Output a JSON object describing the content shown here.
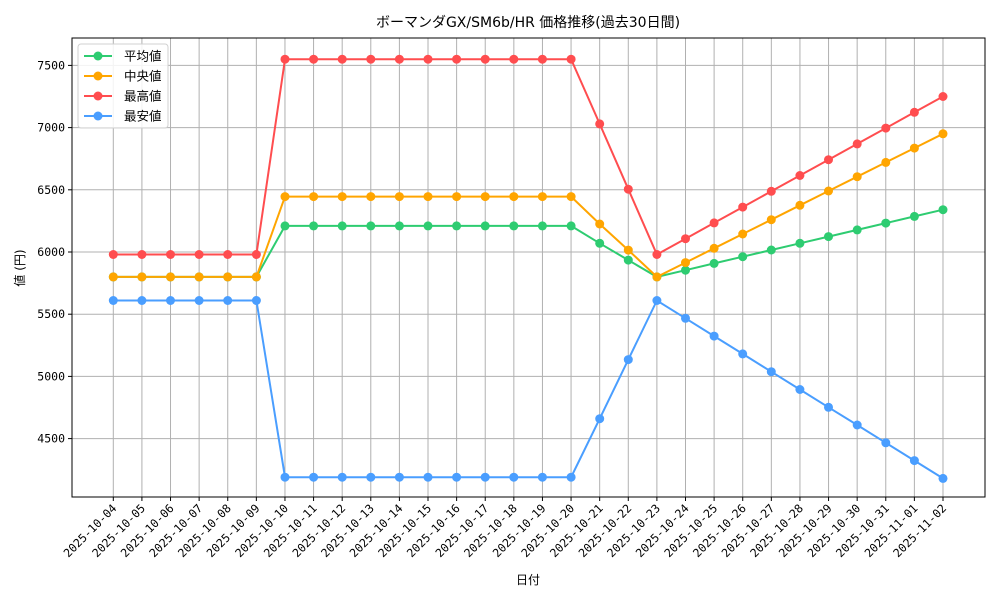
{
  "chart_data": {
    "type": "line",
    "title": "ボーマンダGX/SM6b/HR 価格推移(過去30日間)",
    "xlabel": "日付",
    "ylabel": "値 (円)",
    "ylim": [
      4100,
      7700
    ],
    "yticks": [
      4500,
      5000,
      5500,
      6000,
      6500,
      7000,
      7500
    ],
    "grid": true,
    "legend_position": "upper left",
    "x": [
      "2025-10-04",
      "2025-10-05",
      "2025-10-06",
      "2025-10-07",
      "2025-10-08",
      "2025-10-09",
      "2025-10-10",
      "2025-10-11",
      "2025-10-12",
      "2025-10-13",
      "2025-10-14",
      "2025-10-15",
      "2025-10-16",
      "2025-10-17",
      "2025-10-18",
      "2025-10-19",
      "2025-10-20",
      "2025-10-21",
      "2025-10-22",
      "2025-10-23",
      "2025-10-24",
      "2025-10-25",
      "2025-10-26",
      "2025-10-27",
      "2025-10-28",
      "2025-10-29",
      "2025-10-30",
      "2025-10-31",
      "2025-11-01",
      "2025-11-02"
    ],
    "series": [
      {
        "name": "平均値",
        "color": "#2ecc71",
        "values": [
          5800,
          5800,
          5800,
          5800,
          5800,
          5800,
          6210,
          6210,
          6210,
          6210,
          6210,
          6210,
          6210,
          6210,
          6210,
          6210,
          6210,
          6070,
          5935,
          5800,
          5854,
          5908,
          5962,
          6016,
          6070,
          6124,
          6178,
          6232,
          6286,
          6340
        ]
      },
      {
        "name": "中央値",
        "color": "#ffa500",
        "values": [
          5800,
          5800,
          5800,
          5800,
          5800,
          5800,
          6445,
          6445,
          6445,
          6445,
          6445,
          6445,
          6445,
          6445,
          6445,
          6445,
          6445,
          6225,
          6015,
          5800,
          5915,
          6030,
          6145,
          6260,
          6375,
          6490,
          6605,
          6720,
          6835,
          6950
        ]
      },
      {
        "name": "最高値",
        "color": "#ff4d4f",
        "values": [
          5980,
          5980,
          5980,
          5980,
          5980,
          5980,
          7550,
          7550,
          7550,
          7550,
          7550,
          7550,
          7550,
          7550,
          7550,
          7550,
          7550,
          7030,
          6505,
          5980,
          6107,
          6234,
          6361,
          6488,
          6615,
          6742,
          6869,
          6996,
          7123,
          7250
        ]
      },
      {
        "name": "最安値",
        "color": "#4a9eff",
        "values": [
          5610,
          5610,
          5610,
          5610,
          5610,
          5610,
          4190,
          4190,
          4190,
          4190,
          4190,
          4190,
          4190,
          4190,
          4190,
          4190,
          4190,
          4660,
          5135,
          5610,
          5467,
          5324,
          5181,
          5038,
          4895,
          4752,
          4609,
          4466,
          4323,
          4180
        ]
      }
    ]
  }
}
